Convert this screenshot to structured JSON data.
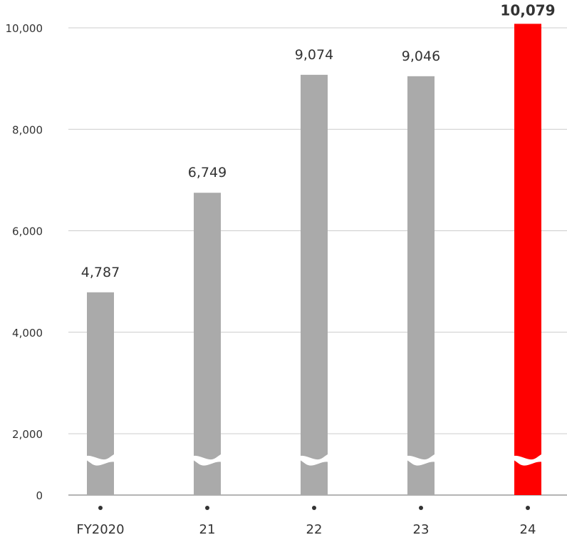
{
  "chart_data": {
    "type": "bar",
    "categories": [
      "FY2020",
      "21",
      "22",
      "23",
      "24"
    ],
    "values": [
      4787,
      6749,
      9074,
      9046,
      10079
    ],
    "value_labels": [
      "4,787",
      "6,749",
      "9,074",
      "9,046",
      "10,079"
    ],
    "title": "",
    "xlabel": "",
    "ylabel": "",
    "ylim": [
      0,
      10000
    ],
    "y_ticks": [
      0,
      2000,
      4000,
      6000,
      8000,
      10000
    ],
    "y_tick_labels": [
      "0",
      "2,000",
      "4,000",
      "6,000",
      "8,000",
      "10,000"
    ],
    "axis_break": true,
    "grid": true,
    "highlight_index": 4,
    "colors": {
      "bar": "#aaaaaa",
      "highlight": "#ff0000",
      "grid": "#cccccc",
      "axis": "#888888",
      "text": "#333333"
    }
  }
}
